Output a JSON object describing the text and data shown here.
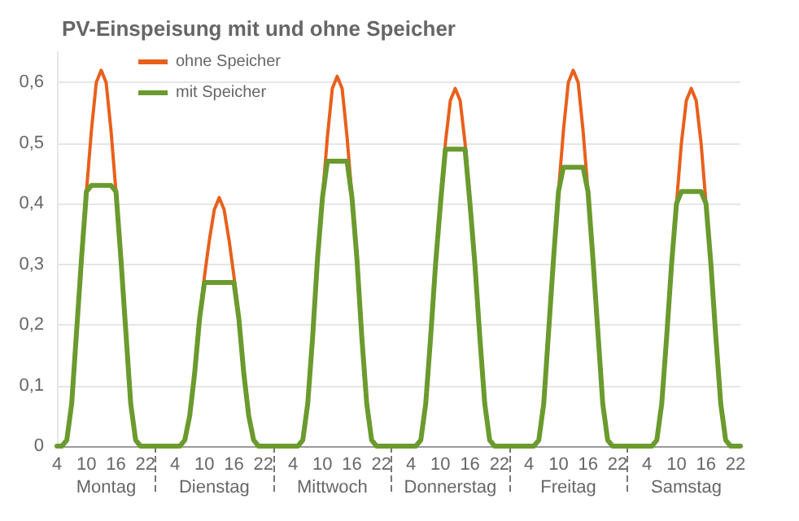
{
  "chart_data": {
    "type": "line",
    "title": "PV-Einspeisung mit und ohne Speicher",
    "categories": [
      "4",
      null,
      null,
      null,
      null,
      null,
      "10",
      null,
      null,
      null,
      null,
      null,
      "16",
      null,
      null,
      null,
      null,
      null,
      "22",
      null,
      null,
      null,
      null,
      null,
      "4",
      null,
      null,
      null,
      null,
      null,
      "10",
      null,
      null,
      null,
      null,
      null,
      "16",
      null,
      null,
      null,
      null,
      null,
      "22",
      null,
      null,
      null,
      null,
      null,
      "4",
      null,
      null,
      null,
      null,
      null,
      "10",
      null,
      null,
      null,
      null,
      null,
      "16",
      null,
      null,
      null,
      null,
      null,
      "22",
      null,
      null,
      null,
      null,
      null,
      "4",
      null,
      null,
      null,
      null,
      null,
      "10",
      null,
      null,
      null,
      null,
      null,
      "16",
      null,
      null,
      null,
      null,
      null,
      "22",
      null,
      null,
      null,
      null,
      null,
      "4",
      null,
      null,
      null,
      null,
      null,
      "10",
      null,
      null,
      null,
      null,
      null,
      "16",
      null,
      null,
      null,
      null,
      null,
      "22",
      null,
      null,
      null,
      null,
      null,
      "4",
      null,
      null,
      null,
      null,
      null,
      "10",
      null,
      null,
      null,
      null,
      null,
      "16",
      null,
      null,
      null,
      null,
      null,
      "22",
      null
    ],
    "series": [
      {
        "name": "ohne Speicher",
        "color": "#e8601c",
        "values": [
          null,
          null,
          null,
          null,
          null,
          null,
          0.42,
          0.52,
          0.6,
          0.62,
          0.6,
          0.52,
          0.42,
          null,
          null,
          null,
          null,
          null,
          null,
          null,
          null,
          null,
          null,
          null,
          null,
          null,
          null,
          null,
          null,
          0.21,
          0.28,
          0.34,
          0.39,
          0.41,
          0.39,
          0.34,
          0.28,
          0.21,
          null,
          null,
          null,
          null,
          null,
          null,
          null,
          null,
          null,
          null,
          null,
          null,
          null,
          null,
          null,
          null,
          0.41,
          0.51,
          0.59,
          0.61,
          0.59,
          0.51,
          0.41,
          null,
          null,
          null,
          null,
          null,
          null,
          null,
          null,
          null,
          null,
          null,
          null,
          null,
          null,
          null,
          null,
          null,
          0.4,
          0.5,
          0.57,
          0.59,
          0.57,
          0.5,
          0.4,
          null,
          null,
          null,
          null,
          null,
          null,
          null,
          null,
          null,
          null,
          null,
          null,
          null,
          null,
          null,
          null,
          null,
          0.42,
          0.52,
          0.6,
          0.62,
          0.6,
          0.52,
          0.42,
          null,
          null,
          null,
          null,
          null,
          null,
          null,
          null,
          null,
          null,
          null,
          null,
          null,
          null,
          null,
          null,
          null,
          0.4,
          0.5,
          0.57,
          0.59,
          0.57,
          0.5,
          0.4,
          null,
          null,
          null,
          null,
          null,
          null,
          null
        ]
      },
      {
        "name": "mit Speicher",
        "color": "#6b9a2e",
        "values": [
          0,
          0,
          0.01,
          0.07,
          0.19,
          0.31,
          0.42,
          0.43,
          0.43,
          0.43,
          0.43,
          0.43,
          0.42,
          0.31,
          0.19,
          0.07,
          0.01,
          0,
          0,
          0,
          0,
          0,
          0,
          0,
          0,
          0,
          0.01,
          0.05,
          0.12,
          0.21,
          0.27,
          0.27,
          0.27,
          0.27,
          0.27,
          0.27,
          0.27,
          0.21,
          0.12,
          0.05,
          0.01,
          0,
          0,
          0,
          0,
          0,
          0,
          0,
          0,
          0,
          0.01,
          0.07,
          0.18,
          0.31,
          0.41,
          0.47,
          0.47,
          0.47,
          0.47,
          0.47,
          0.41,
          0.31,
          0.18,
          0.07,
          0.01,
          0,
          0,
          0,
          0,
          0,
          0,
          0,
          0,
          0,
          0.01,
          0.07,
          0.18,
          0.3,
          0.4,
          0.49,
          0.49,
          0.49,
          0.49,
          0.49,
          0.4,
          0.3,
          0.18,
          0.07,
          0.01,
          0,
          0,
          0,
          0,
          0,
          0,
          0,
          0,
          0,
          0.01,
          0.07,
          0.19,
          0.31,
          0.42,
          0.46,
          0.46,
          0.46,
          0.46,
          0.46,
          0.42,
          0.31,
          0.19,
          0.07,
          0.01,
          0,
          0,
          0,
          0,
          0,
          0,
          0,
          0,
          0,
          0.01,
          0.07,
          0.18,
          0.3,
          0.4,
          0.42,
          0.42,
          0.42,
          0.42,
          0.42,
          0.4,
          0.3,
          0.18,
          0.07,
          0.01,
          0,
          0,
          0
        ]
      }
    ],
    "annotations": [
      "Montag",
      "Dienstag",
      "Mittwoch",
      "Donnerstag",
      "Freitag",
      "Samstag"
    ],
    "ylim": [
      0,
      0.65
    ],
    "yticks": [
      0,
      {
        "value": 0.1,
        "label": "0,1"
      },
      {
        "value": 0.2,
        "label": "0,2"
      },
      {
        "value": 0.3,
        "label": "0,3"
      },
      {
        "value": 0.4,
        "label": "0,4"
      },
      {
        "value": 0.5,
        "label": "0,5"
      },
      {
        "value": 0.6,
        "label": "0,6"
      }
    ],
    "grid": "y",
    "legend": "top left",
    "marker": "none",
    "line_style": "solid"
  }
}
